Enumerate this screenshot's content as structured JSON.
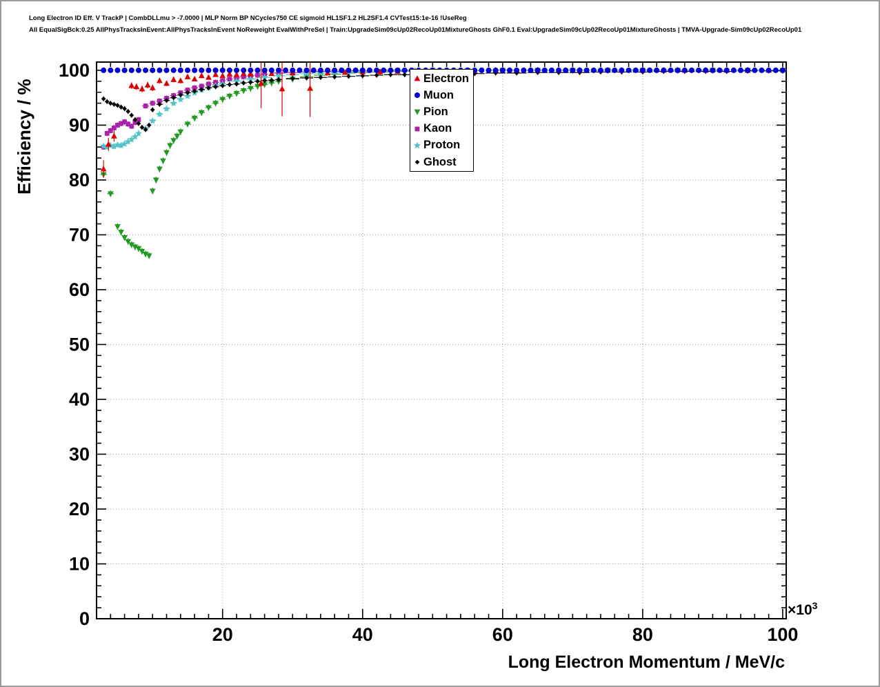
{
  "page": {
    "title_line1": "Long Electron ID Eff. V TrackP | CombDLLmu > -7.0000 | MLP Norm BP NCycles750 CE sigmoid HL1SF1.2 HL2SF1.4 CVTest15:1e-16 !UseReg",
    "title_line2": "All EqualSigBck:0.25 AllPhysTracksInEvent:AllPhysTracksInEvent NoReweight EvalWithPreSel | Train:UpgradeSim09cUp02RecoUp01MixtureGhosts GhF0.1 Eval:UpgradeSim09cUp02RecoUp01MixtureGhosts | TMVA-Upgrade-Sim09cUp02RecoUp01"
  },
  "chart_data": {
    "type": "scatter",
    "title": "",
    "xlabel": "Long Electron Momentum / MeV/c",
    "ylabel": "Efficiency / %",
    "x_unit": {
      "times": "×10",
      "exponent": "3"
    },
    "xlim": [
      2,
      100.5
    ],
    "ylim": [
      0,
      101.5
    ],
    "x_ticks": {
      "values": [
        20,
        40,
        60,
        80,
        100
      ],
      "labels": [
        "20",
        "40",
        "60",
        "80",
        "100"
      ],
      "minor_step": 2
    },
    "y_ticks": {
      "values": [
        0,
        10,
        20,
        30,
        40,
        50,
        60,
        70,
        80,
        90,
        100
      ],
      "labels": [
        "0",
        "10",
        "20",
        "30",
        "40",
        "50",
        "60",
        "70",
        "80",
        "90",
        "100"
      ],
      "minor_step": 2
    },
    "grid": {
      "show": true,
      "color": "#999999",
      "style": "dotted"
    },
    "legend_position": "top-center-inside",
    "series": [
      {
        "name": "Electron",
        "marker": "triangle-up",
        "color": "#dd0000",
        "zorder": 5,
        "xbar": false,
        "x": [
          3,
          3.7,
          4.5,
          7,
          7.7,
          8.5,
          9.3,
          10,
          11,
          12,
          13,
          14,
          15,
          16,
          17,
          18,
          19,
          20,
          21,
          22,
          23,
          24,
          25.5,
          27,
          28.5,
          30,
          32.5,
          35,
          37.5,
          40,
          42.5,
          45,
          47.5,
          50,
          53,
          56,
          59,
          62,
          65,
          68,
          71,
          74,
          77,
          80,
          83,
          86,
          89,
          92,
          95,
          98
        ],
        "y": [
          82,
          86.5,
          88,
          97.2,
          97,
          96.6,
          97.3,
          96.8,
          98.1,
          97.6,
          98.3,
          98.1,
          98.8,
          98.4,
          99,
          98.7,
          99.2,
          99,
          99.3,
          99.2,
          99.4,
          99.3,
          97.6,
          99.4,
          96.6,
          99.5,
          96.7,
          99.5,
          99.6,
          99.7,
          99.7,
          99.8,
          99.8,
          99.9,
          99.9,
          99.9,
          100,
          100,
          100,
          100,
          100,
          100,
          100,
          100,
          100,
          100,
          100,
          100,
          100,
          100
        ],
        "yerr": [
          1.6,
          1.2,
          1.0,
          0.6,
          0.6,
          0.6,
          0.6,
          0.6,
          0.5,
          0.5,
          0.5,
          0.5,
          0.4,
          0.4,
          0.4,
          0.4,
          0.4,
          0.4,
          0.4,
          0.4,
          0.4,
          0.4,
          4.5,
          0.4,
          5.0,
          0.4,
          5.2,
          0.4,
          0.3,
          0.3,
          0.3,
          0.2,
          0.2,
          0.2,
          0.2,
          0.2,
          0.1,
          0.1,
          0.1,
          0.1,
          0.1,
          0.1,
          0.1,
          0.1,
          0.1,
          0.1,
          0.1,
          0.1,
          0.1,
          0.1
        ]
      },
      {
        "name": "Muon",
        "marker": "circle",
        "color": "#0000d0",
        "zorder": 6,
        "xbar": false,
        "x_range": [
          3,
          100,
          1
        ],
        "y_const": 100
      },
      {
        "name": "Pion",
        "marker": "triangle-down",
        "color": "#209a20",
        "zorder": 1,
        "xbar": true,
        "yerr_const": 0.6,
        "x": [
          3,
          4,
          5,
          5.5,
          6,
          6.5,
          7,
          7.5,
          8,
          8.5,
          9,
          9.5,
          10,
          10.5,
          11,
          11.5,
          12,
          12.5,
          13,
          13.5,
          14,
          15,
          16,
          17,
          18,
          19,
          20,
          21,
          22,
          23,
          24,
          25,
          26,
          27,
          28,
          30,
          32,
          34,
          36,
          38,
          40,
          42.5,
          45,
          47.5,
          50,
          55,
          60,
          65,
          70,
          75,
          80,
          85,
          90,
          95,
          100
        ],
        "y": [
          81,
          77.5,
          71.5,
          70.5,
          69.5,
          68.8,
          68.2,
          67.8,
          67.5,
          67,
          66.5,
          66.2,
          78,
          80,
          82,
          83.5,
          85,
          86.3,
          87.2,
          88,
          88.8,
          90.2,
          91.3,
          92.3,
          93.2,
          94,
          94.7,
          95.3,
          95.8,
          96.3,
          96.7,
          97.1,
          97.4,
          97.7,
          98,
          98.4,
          98.8,
          99.1,
          99.3,
          99.5,
          99.6,
          99.7,
          99.8,
          99.85,
          99.9,
          99.95,
          100,
          100,
          100,
          100,
          100,
          100,
          100,
          100,
          100
        ]
      },
      {
        "name": "Kaon",
        "marker": "square",
        "color": "#aa22aa",
        "zorder": 2,
        "xbar": true,
        "yerr_const": 0.5,
        "x": [
          3,
          3.5,
          4,
          4.5,
          5,
          5.5,
          6,
          6.5,
          7,
          7.5,
          8,
          9,
          10,
          11,
          12,
          13,
          14,
          15,
          16,
          17,
          18,
          19,
          20,
          21,
          22,
          23,
          24,
          25,
          26,
          28,
          30,
          32,
          34,
          36,
          38,
          40,
          45,
          50,
          55,
          60,
          65,
          70,
          75,
          80,
          85,
          90,
          95,
          100
        ],
        "y": [
          86,
          88.5,
          89,
          89.5,
          90,
          90.3,
          90.6,
          90.2,
          89.8,
          90.5,
          91,
          93.5,
          94,
          94.4,
          94.9,
          95.4,
          95.9,
          96.4,
          96.8,
          97.1,
          97.5,
          97.8,
          98.1,
          98.4,
          98.6,
          98.8,
          99,
          99.1,
          99.3,
          99.5,
          99.6,
          99.7,
          99.8,
          99.8,
          99.9,
          99.9,
          100,
          100,
          100,
          100,
          100,
          100,
          100,
          100,
          100,
          100,
          100,
          100
        ]
      },
      {
        "name": "Proton",
        "marker": "star",
        "color": "#55c4c8",
        "zorder": 3,
        "xbar": true,
        "yerr_const": 0.45,
        "x": [
          3,
          3.5,
          4,
          4.5,
          5,
          5.5,
          6,
          6.5,
          7,
          7.5,
          8,
          9,
          10,
          11,
          12,
          13,
          14,
          15,
          16,
          17,
          18,
          19,
          20,
          22,
          24,
          26,
          28,
          30,
          32,
          34,
          36,
          38,
          40,
          45,
          50,
          55,
          60,
          65,
          70,
          75,
          80,
          85,
          90,
          95,
          100
        ],
        "y": [
          86.2,
          86,
          86.3,
          86.1,
          86.4,
          86.3,
          86.6,
          87,
          87.4,
          87.9,
          88.5,
          89.4,
          90.8,
          92,
          93,
          94,
          94.7,
          95.3,
          95.9,
          96.4,
          96.8,
          97.2,
          97.5,
          98,
          98.4,
          98.7,
          99,
          99.2,
          99.4,
          99.5,
          99.6,
          99.7,
          99.8,
          99.9,
          99.9,
          100,
          100,
          100,
          100,
          100,
          100,
          100,
          100,
          100,
          100
        ]
      },
      {
        "name": "Ghost",
        "marker": "diamond",
        "color": "#000000",
        "zorder": 4,
        "xbar": true,
        "yerr_const": 0.45,
        "x": [
          3,
          3.5,
          4,
          4.5,
          5,
          5.5,
          6,
          6.5,
          7,
          7.5,
          8,
          8.5,
          9,
          9.5,
          10,
          11,
          12,
          13,
          14,
          15,
          16,
          17,
          18,
          19,
          20,
          21,
          22,
          23,
          24,
          25,
          26,
          27,
          28,
          30,
          32,
          34,
          36,
          38,
          40,
          42,
          44,
          46,
          48,
          50,
          53,
          56,
          59,
          62,
          65,
          68,
          71,
          74,
          77,
          80,
          83,
          86,
          89,
          92,
          95,
          98,
          100
        ],
        "y": [
          94.8,
          94.3,
          94,
          93.8,
          93.6,
          93.3,
          93,
          92.5,
          91.8,
          91,
          90.3,
          89.6,
          89.2,
          90,
          92.8,
          93.8,
          94.5,
          95,
          95.5,
          95.9,
          96.2,
          96.5,
          96.8,
          97,
          97.2,
          97.4,
          97.5,
          97.7,
          97.8,
          98,
          98.1,
          98.2,
          98.3,
          98.5,
          98.6,
          98.7,
          98.8,
          98.9,
          99,
          99.1,
          99.2,
          99.2,
          99.3,
          99.3,
          99.4,
          99.4,
          99.5,
          99.5,
          99.6,
          99.6,
          99.6,
          99.7,
          99.7,
          99.7,
          99.8,
          99.8,
          99.8,
          99.8,
          99.9,
          99.9,
          99.9
        ]
      }
    ]
  }
}
